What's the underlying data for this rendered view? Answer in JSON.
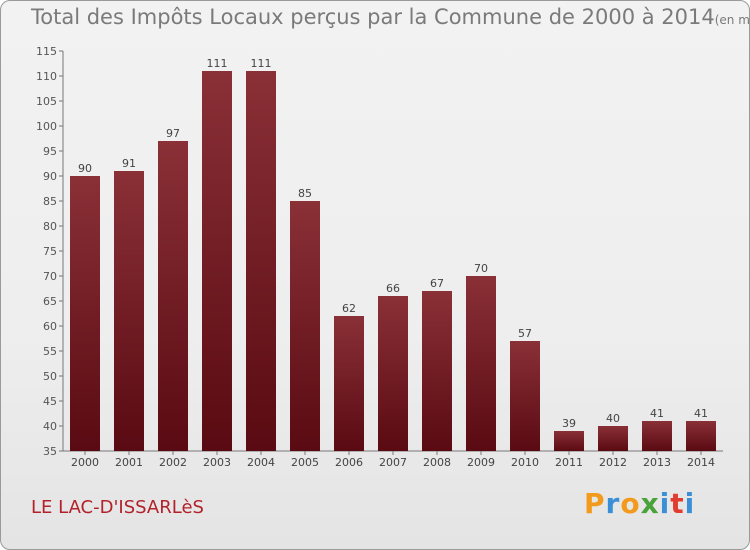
{
  "title": "Total des Impôts Locaux perçus par la Commune de 2000 à 2014",
  "title_unit": "(en milliers d'€)",
  "commune": "LE LAC-D'ISSARLèS",
  "logo": {
    "letters": [
      "P",
      "r",
      "o",
      "x",
      "i",
      "t",
      "i"
    ],
    "colors": [
      "#f29a1b",
      "#3a8fd6",
      "#f29a1b",
      "#4aa33a",
      "#3a8fd6",
      "#e23b2f",
      "#3a8fd6"
    ]
  },
  "chart_data": {
    "type": "bar",
    "title": "Total des Impôts Locaux perçus par la Commune de 2000 à 2014",
    "categories": [
      "2000",
      "2001",
      "2002",
      "2003",
      "2004",
      "2005",
      "2006",
      "2007",
      "2008",
      "2009",
      "2010",
      "2011",
      "2012",
      "2013",
      "2014"
    ],
    "values": [
      90,
      91,
      97,
      111,
      111,
      85,
      62,
      66,
      67,
      70,
      57,
      39,
      40,
      41,
      41
    ],
    "ylim": [
      35,
      115
    ],
    "yticks": [
      35,
      40,
      45,
      50,
      55,
      60,
      65,
      70,
      75,
      80,
      85,
      90,
      95,
      100,
      105,
      110,
      115
    ],
    "grid": false,
    "bar_color_top": "#8a3037",
    "bar_color_bottom": "#5a0a12",
    "xlabel": "",
    "ylabel": ""
  }
}
